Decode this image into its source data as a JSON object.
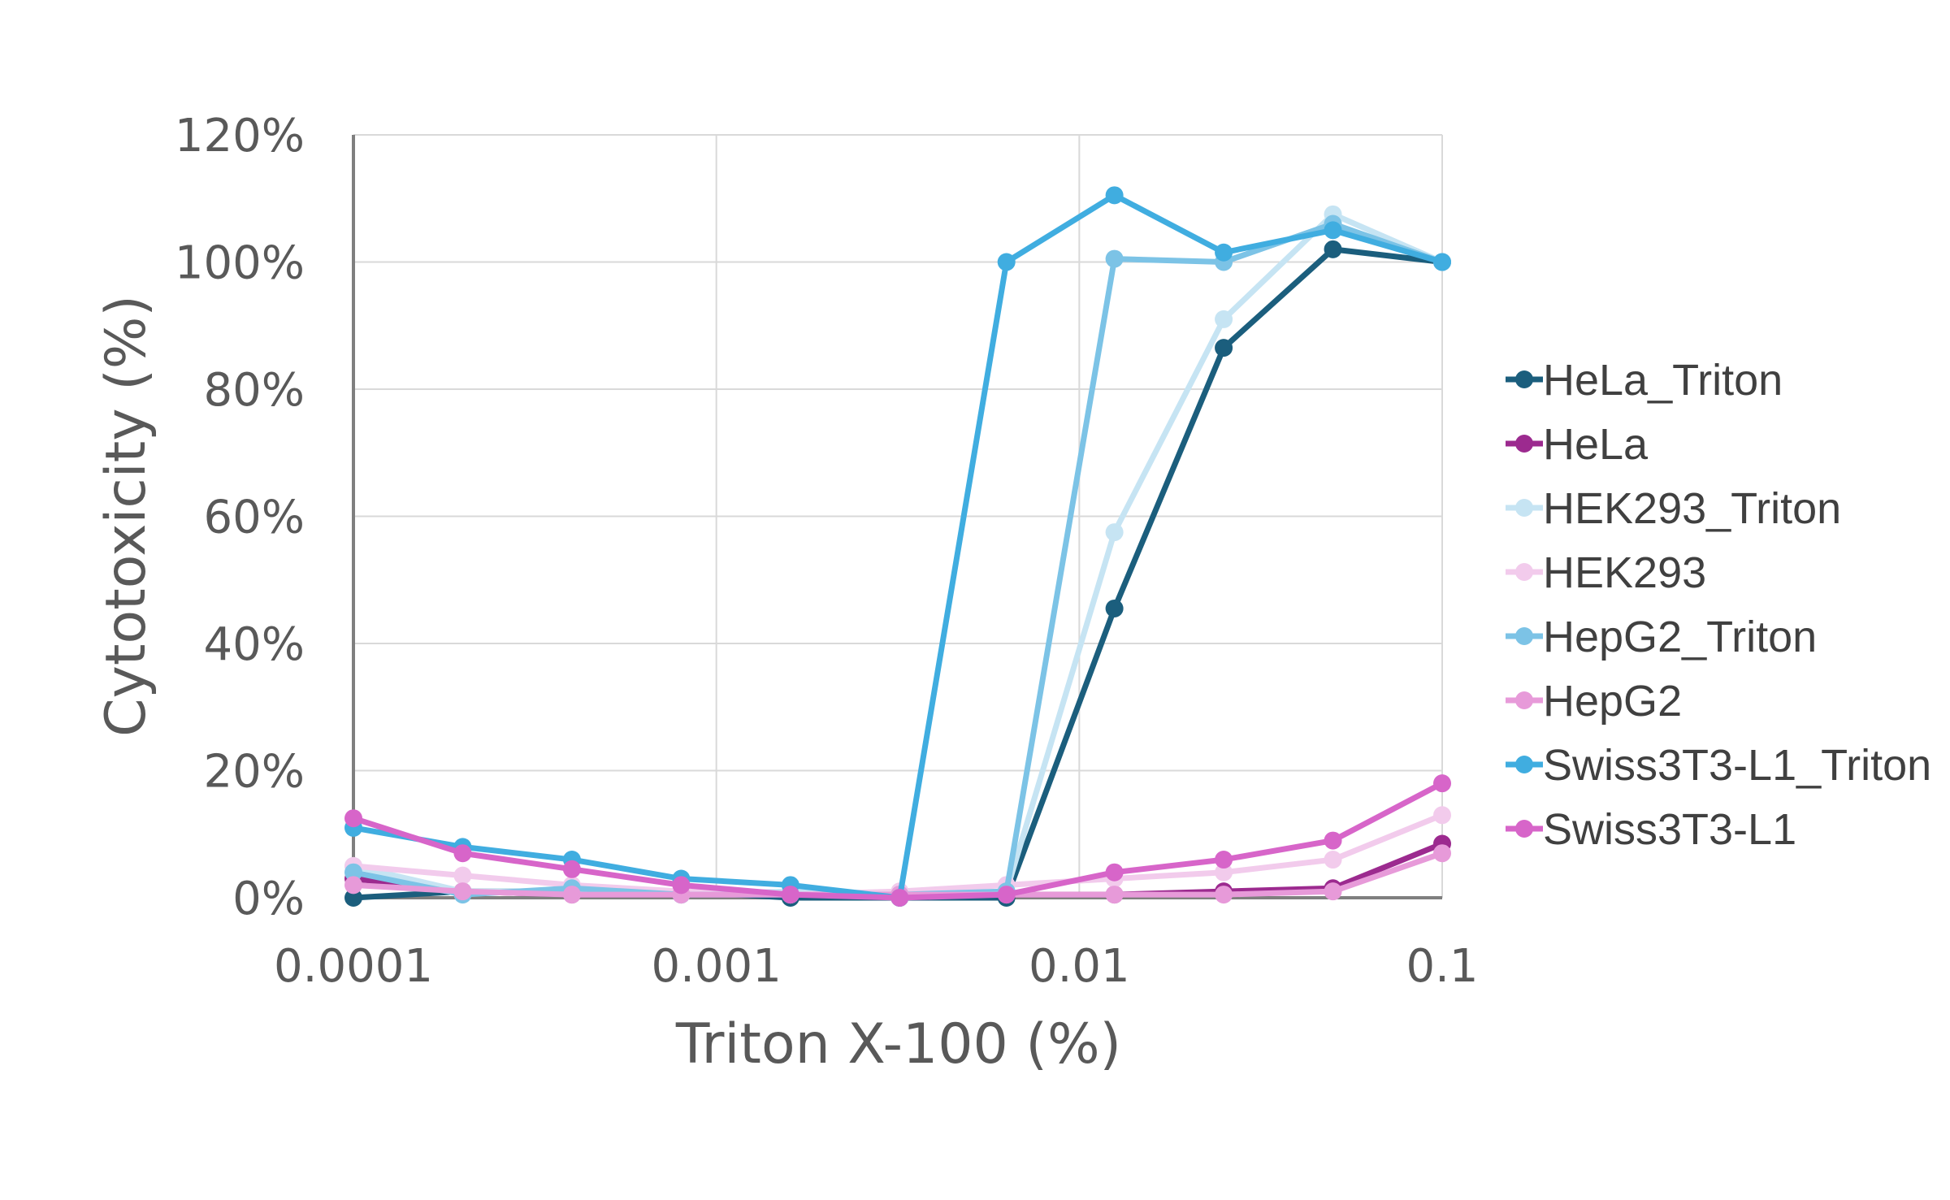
{
  "chart_data": {
    "type": "line",
    "xlabel": "Triton X-100 (%)",
    "ylabel": "Cytotoxicity (%)",
    "x_scale": "log",
    "xlim": [
      0.0001,
      0.1
    ],
    "ylim": [
      0,
      1.2
    ],
    "x_ticks": [
      0.0001,
      0.001,
      0.01,
      0.1
    ],
    "x_tick_labels": [
      "0.0001",
      "0.001",
      "0.01",
      "0.1"
    ],
    "y_ticks": [
      0,
      0.2,
      0.4,
      0.6,
      0.8,
      1.0,
      1.2
    ],
    "y_tick_labels": [
      "0%",
      "20%",
      "40%",
      "60%",
      "80%",
      "100%",
      "120%"
    ],
    "grid": true,
    "legend_position": "right",
    "x": [
      0.0001,
      0.0002,
      0.0004,
      0.0008,
      0.0016,
      0.0032,
      0.0063,
      0.0125,
      0.025,
      0.05,
      0.1
    ],
    "series": [
      {
        "name": "HeLa_Triton",
        "color": "#1b5e7d",
        "values": [
          0.0,
          0.01,
          0.01,
          0.01,
          0.0,
          0.0,
          0.0,
          0.455,
          0.865,
          1.02,
          1.0
        ]
      },
      {
        "name": "HeLa",
        "color": "#9c2a8f",
        "values": [
          0.03,
          0.01,
          0.005,
          0.005,
          0.005,
          0.005,
          0.005,
          0.005,
          0.01,
          0.015,
          0.085
        ]
      },
      {
        "name": "HEK293_Triton",
        "color": "#c6e4f3",
        "values": [
          0.05,
          0.01,
          0.01,
          0.005,
          0.01,
          0.005,
          0.01,
          0.575,
          0.91,
          1.075,
          1.0
        ]
      },
      {
        "name": "HEK293",
        "color": "#f2cbec",
        "values": [
          0.05,
          0.035,
          0.02,
          0.01,
          0.005,
          0.01,
          0.02,
          0.03,
          0.04,
          0.06,
          0.13
        ]
      },
      {
        "name": "HepG2_Triton",
        "color": "#7cc3e6",
        "values": [
          0.04,
          0.005,
          0.015,
          0.005,
          0.005,
          0.005,
          0.01,
          1.005,
          1.0,
          1.06,
          1.0
        ]
      },
      {
        "name": "HepG2",
        "color": "#e79ad9",
        "values": [
          0.02,
          0.01,
          0.005,
          0.005,
          0.005,
          0.005,
          0.005,
          0.005,
          0.005,
          0.01,
          0.07
        ]
      },
      {
        "name": "Swiss3T3-L1_Triton",
        "color": "#40ade0",
        "values": [
          0.11,
          0.08,
          0.06,
          0.03,
          0.02,
          0.0,
          1.0,
          1.105,
          1.015,
          1.05,
          1.0
        ]
      },
      {
        "name": "Swiss3T3-L1",
        "color": "#d765c9",
        "values": [
          0.125,
          0.07,
          0.045,
          0.02,
          0.005,
          0.0,
          0.005,
          0.04,
          0.06,
          0.09,
          0.18
        ]
      }
    ]
  }
}
